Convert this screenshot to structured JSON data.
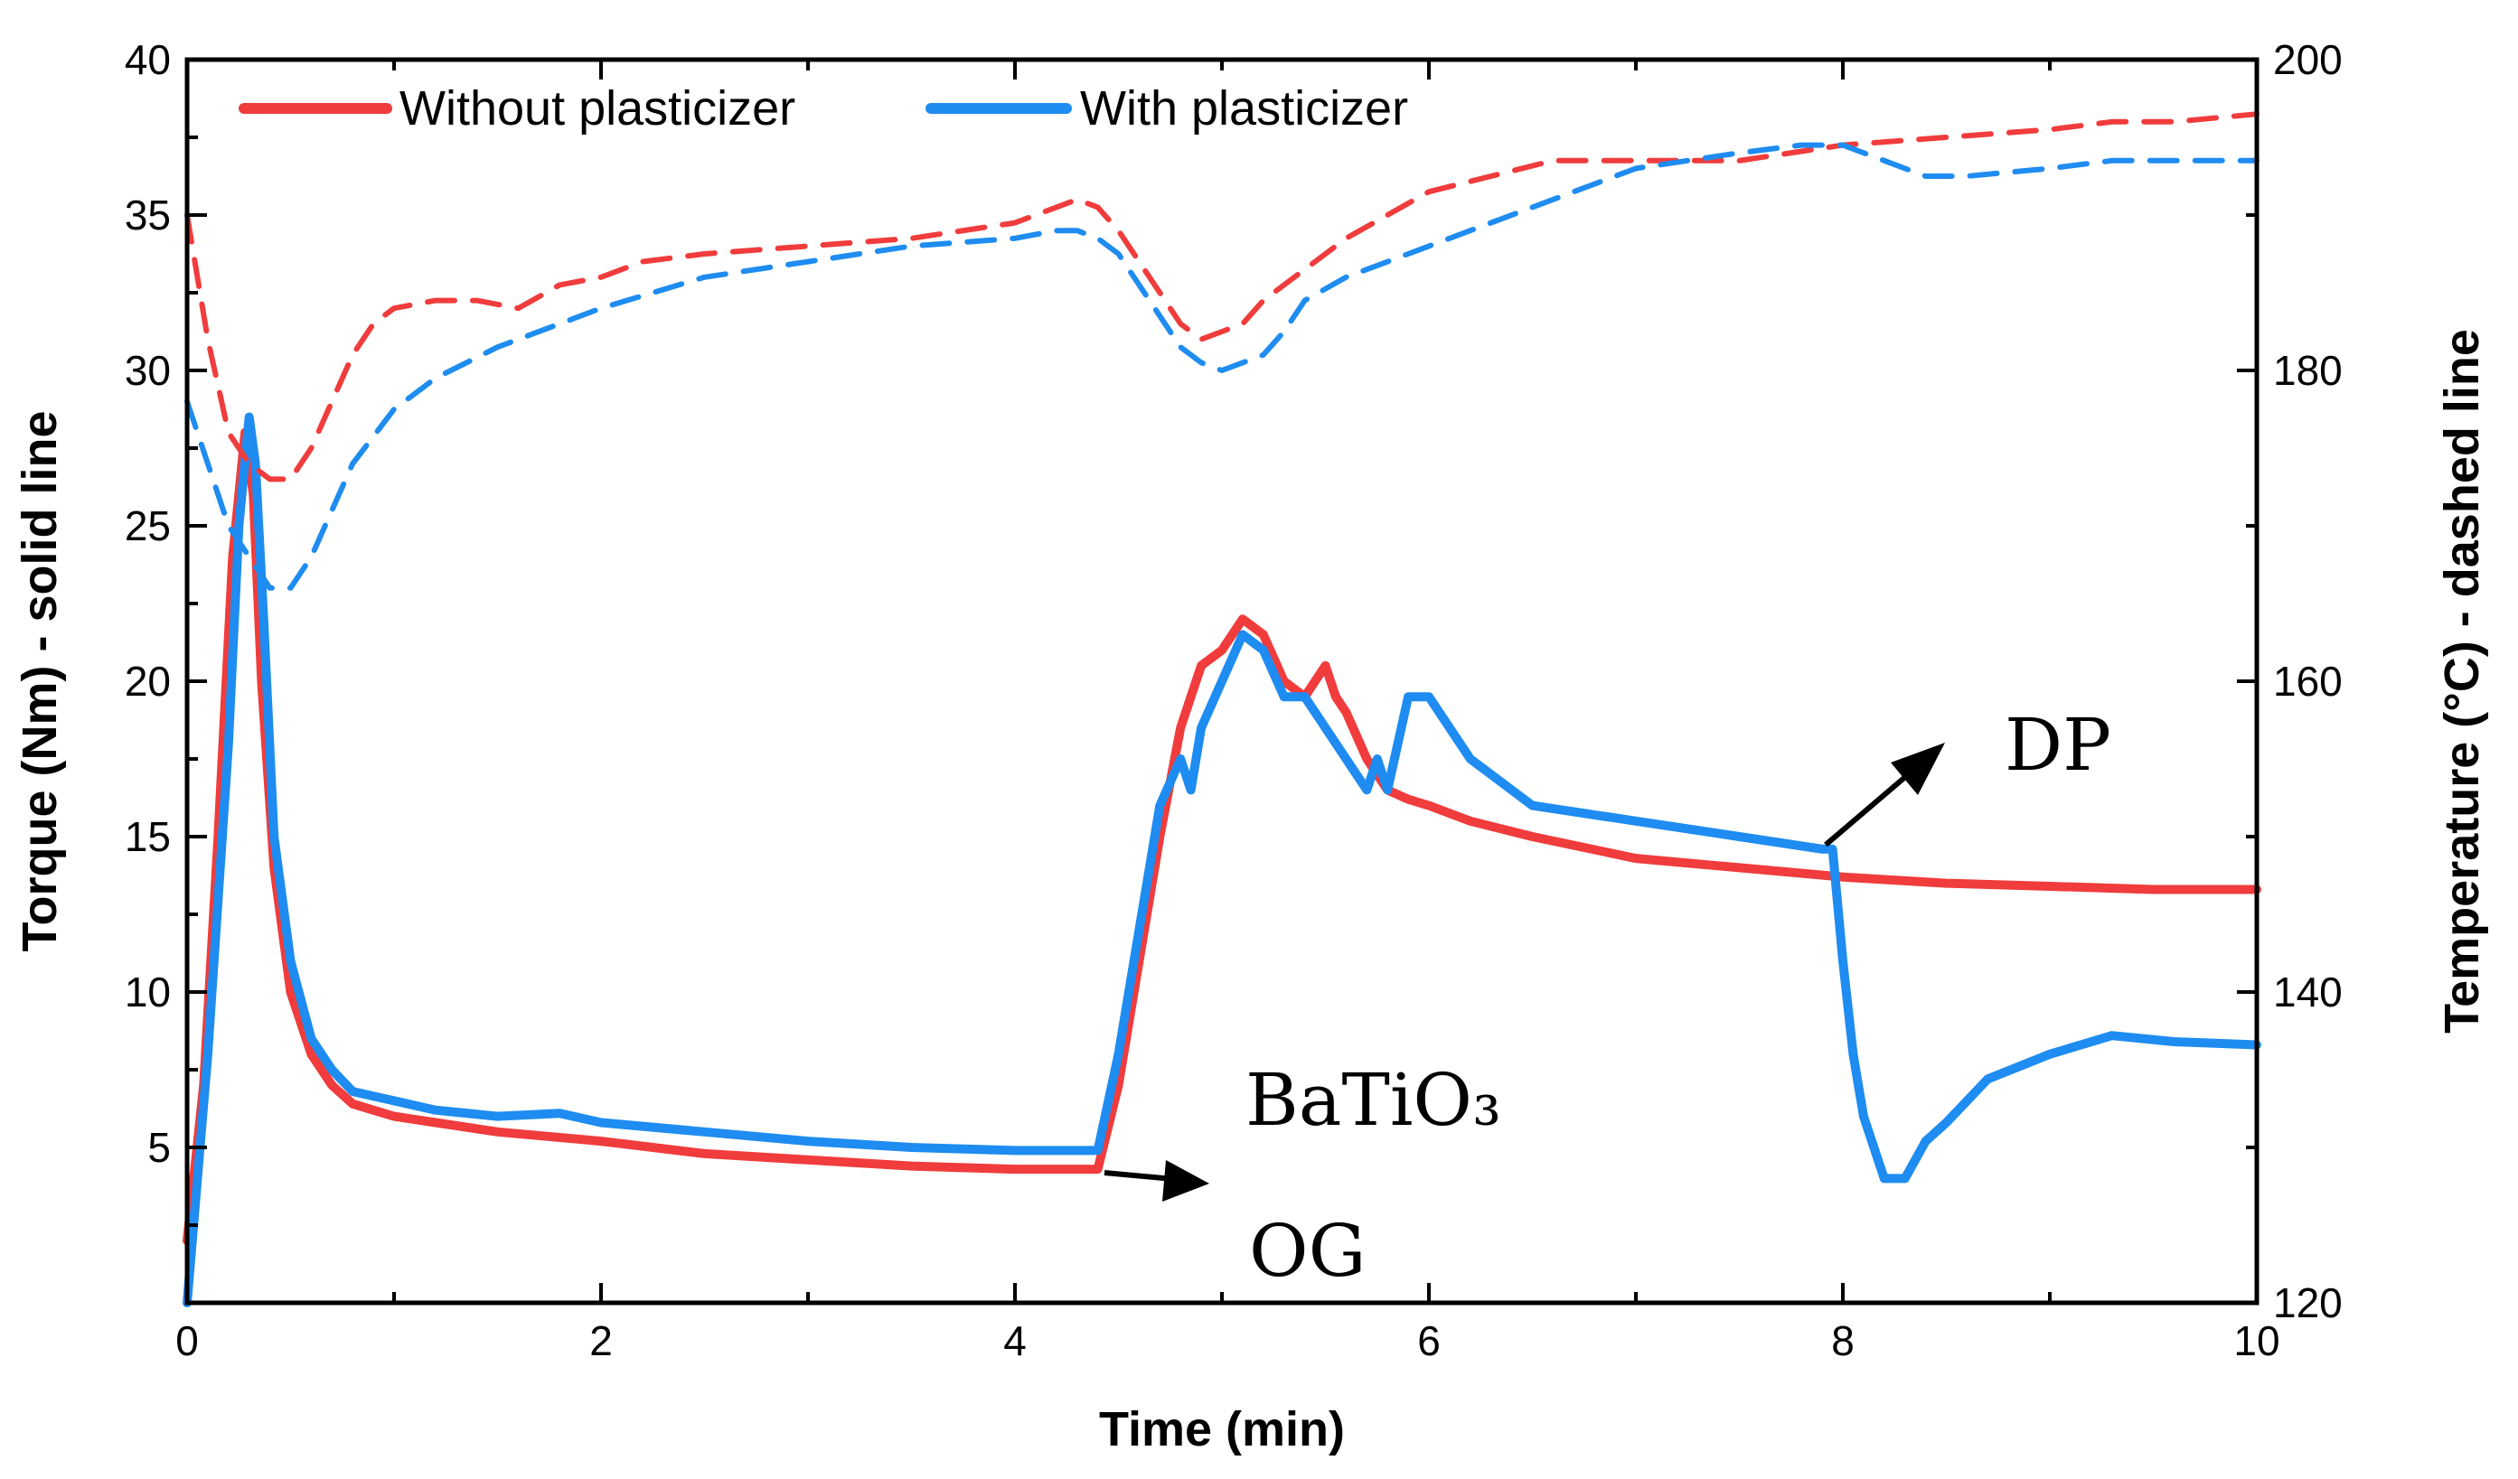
{
  "chart_data": {
    "type": "line",
    "title": "",
    "xlabel": "Time (min)",
    "ylabel": "Torque (Nm) - solid line",
    "y2label": "Temperature (°C) - dashed line",
    "xlim": [
      0,
      10
    ],
    "ylim": [
      0,
      40
    ],
    "y2lim": [
      120,
      200
    ],
    "x_ticks": [
      "0",
      "2",
      "4",
      "6",
      "8",
      "10"
    ],
    "y_ticks": [
      "5",
      "10",
      "15",
      "20",
      "25",
      "30",
      "35",
      "40"
    ],
    "y2_ticks": [
      "120",
      "140",
      "160",
      "180",
      "200"
    ],
    "grid": false,
    "legend_position": "top-left",
    "colors": {
      "without": "#f03c3c",
      "with": "#1e8cf0",
      "axis": "#000000"
    },
    "series": [
      {
        "name": "Without plasticizer",
        "style": "solid",
        "axis": "left",
        "x": [
          0,
          0.08,
          0.15,
          0.22,
          0.28,
          0.32,
          0.36,
          0.42,
          0.5,
          0.6,
          0.7,
          0.8,
          1.0,
          1.2,
          1.5,
          2.0,
          2.5,
          3.0,
          3.5,
          4.0,
          4.3,
          4.4,
          4.5,
          4.6,
          4.7,
          4.8,
          4.9,
          5.0,
          5.1,
          5.2,
          5.3,
          5.4,
          5.5,
          5.55,
          5.6,
          5.7,
          5.8,
          5.9,
          6.0,
          6.2,
          6.5,
          7.0,
          7.5,
          8.0,
          8.5,
          9.0,
          9.5,
          10.0
        ],
        "y": [
          2,
          7,
          15,
          24,
          28,
          26,
          20,
          14,
          10,
          8,
          7,
          6.4,
          6,
          5.8,
          5.5,
          5.2,
          4.8,
          4.6,
          4.4,
          4.3,
          4.3,
          4.3,
          7,
          11,
          15,
          18.5,
          20.5,
          21,
          22,
          21.5,
          20,
          19.5,
          20.5,
          19.5,
          19,
          17.5,
          16.5,
          16.2,
          16,
          15.5,
          15,
          14.3,
          14,
          13.7,
          13.5,
          13.4,
          13.3,
          13.3
        ]
      },
      {
        "name": "With plasticizer",
        "style": "solid",
        "axis": "left",
        "x": [
          0,
          0.1,
          0.2,
          0.25,
          0.3,
          0.33,
          0.37,
          0.42,
          0.5,
          0.6,
          0.7,
          0.8,
          1.0,
          1.2,
          1.5,
          1.8,
          2.0,
          2.5,
          3.0,
          3.5,
          4.0,
          4.4,
          4.5,
          4.6,
          4.7,
          4.8,
          4.85,
          4.9,
          5.0,
          5.1,
          5.2,
          5.3,
          5.4,
          5.5,
          5.6,
          5.7,
          5.75,
          5.8,
          5.9,
          6.0,
          6.2,
          6.5,
          7.0,
          7.5,
          7.9,
          7.95,
          8.0,
          8.05,
          8.1,
          8.2,
          8.3,
          8.4,
          8.5,
          8.7,
          9.0,
          9.3,
          9.6,
          10.0
        ],
        "y": [
          0,
          8,
          18,
          25,
          28.5,
          27,
          22,
          15,
          11,
          8.5,
          7.5,
          6.8,
          6.5,
          6.2,
          6,
          6.1,
          5.8,
          5.5,
          5.2,
          5.0,
          4.9,
          4.9,
          8,
          12,
          16,
          17.5,
          16.5,
          18.5,
          20,
          21.5,
          21,
          19.5,
          19.5,
          18.5,
          17.5,
          16.5,
          17.5,
          16.5,
          19.5,
          19.5,
          17.5,
          16,
          15.5,
          15,
          14.6,
          14.6,
          11,
          8,
          6,
          4,
          4,
          5.2,
          5.8,
          7.2,
          8,
          8.6,
          8.4,
          8.3
        ]
      },
      {
        "name": "Without plasticizer temperature",
        "style": "dashed",
        "axis": "right",
        "x": [
          0,
          0.1,
          0.2,
          0.3,
          0.4,
          0.5,
          0.6,
          0.7,
          0.8,
          0.9,
          1.0,
          1.2,
          1.4,
          1.6,
          1.8,
          2.0,
          2.2,
          2.5,
          3.0,
          3.5,
          4.0,
          4.2,
          4.3,
          4.4,
          4.5,
          4.6,
          4.7,
          4.8,
          4.9,
          5.0,
          5.1,
          5.2,
          5.4,
          5.6,
          5.8,
          6.0,
          6.3,
          6.6,
          7.0,
          7.5,
          8.0,
          8.5,
          9.0,
          9.3,
          9.6,
          10.0
        ],
        "y": [
          190,
          182,
          176,
          174,
          173,
          173,
          175,
          178,
          181,
          183,
          184,
          184.5,
          184.5,
          184,
          185.5,
          186,
          187,
          187.5,
          188,
          188.5,
          189.5,
          190.5,
          191,
          190.5,
          189,
          187,
          185,
          183,
          182,
          182.5,
          183,
          184.5,
          186.5,
          188.5,
          190,
          191.5,
          192.5,
          193.5,
          193.5,
          193.5,
          194.5,
          195,
          195.5,
          196,
          196,
          196.5
        ]
      },
      {
        "name": "With plasticizer temperature",
        "style": "dashed",
        "axis": "right",
        "x": [
          0,
          0.1,
          0.2,
          0.3,
          0.4,
          0.5,
          0.6,
          0.7,
          0.8,
          1.0,
          1.2,
          1.5,
          2.0,
          2.5,
          3.0,
          3.5,
          4.0,
          4.2,
          4.3,
          4.4,
          4.5,
          4.6,
          4.7,
          4.8,
          4.9,
          5.0,
          5.1,
          5.2,
          5.3,
          5.4,
          5.6,
          6.0,
          6.5,
          7.0,
          7.5,
          7.8,
          8.0,
          8.2,
          8.4,
          8.6,
          9.0,
          9.3,
          9.6,
          10.0
        ],
        "y": [
          178,
          174,
          170,
          168,
          166,
          166,
          168,
          171,
          174,
          177.5,
          179.5,
          181.5,
          184,
          186,
          187,
          188,
          188.5,
          189,
          189,
          188.5,
          187.5,
          185.5,
          183.5,
          181.5,
          180.5,
          180,
          180.5,
          181,
          182.5,
          184.5,
          186,
          188,
          190.5,
          193,
          194,
          194.5,
          194.5,
          193.5,
          192.5,
          192.5,
          193,
          193.5,
          193.5,
          193.5
        ]
      }
    ],
    "annotations": [
      {
        "text": "BaTiO₃",
        "x": 5.2,
        "y": 6
      },
      {
        "text": "OG",
        "x": 5.2,
        "y": 1.2
      },
      {
        "text": "DP",
        "x": 8.8,
        "y": 17.8
      }
    ]
  }
}
